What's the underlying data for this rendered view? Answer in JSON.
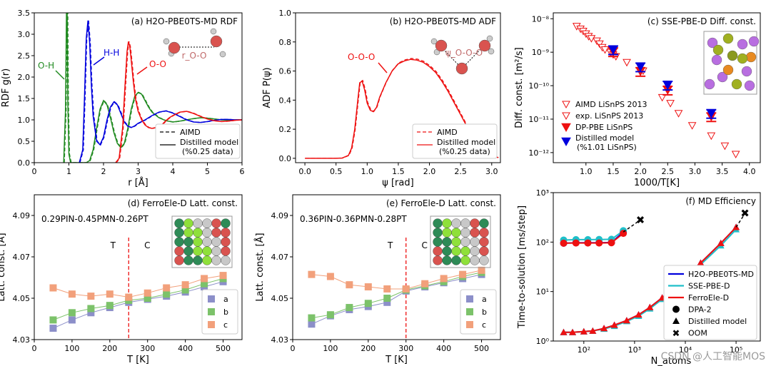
{
  "watermark": "CSDN @人工智能MOS",
  "chart_data": [
    {
      "type": "line",
      "title": "(a) H2O-PBE0TS-MD RDF",
      "xlabel": "r [Å]",
      "ylabel": "RDF g(r)",
      "xlim": [
        0,
        6
      ],
      "ylim": [
        0,
        3.5
      ],
      "xticks": [
        "0",
        "1",
        "2",
        "3",
        "4",
        "5",
        "6"
      ],
      "yticks": [
        "0.0",
        "0.5",
        "1.0",
        "1.5",
        "2.0",
        "2.5",
        "3.0",
        "3.5"
      ],
      "annotations": [
        "O-H",
        "H-H",
        "O-O",
        "r_O-O"
      ],
      "legend": [
        "AIMD",
        "Distilled model\n(%0.25 data)"
      ],
      "legend_position": "lower-right",
      "series": [
        {
          "name": "O-H",
          "color": "#228b22",
          "x": [
            0.85,
            0.9,
            0.93,
            0.95,
            0.97,
            1.0,
            1.05,
            1.1,
            1.2,
            1.3,
            1.4,
            1.5,
            1.6,
            1.7,
            1.8,
            1.9,
            2.0,
            2.1,
            2.2,
            2.3,
            2.4,
            2.5,
            2.6,
            2.7,
            2.8,
            2.9,
            3.0,
            3.1,
            3.2,
            3.3,
            3.4,
            3.6,
            3.8,
            4.0,
            4.2,
            4.4,
            4.6,
            4.8,
            5.0,
            5.2,
            5.4,
            5.6,
            5.8,
            6.0
          ],
          "y": [
            0.0,
            1.2,
            3.5,
            3.5,
            1.4,
            0.2,
            0.0,
            0.0,
            0.0,
            0.0,
            0.0,
            0.0,
            0.05,
            0.3,
            0.8,
            1.25,
            1.45,
            1.35,
            1.05,
            0.7,
            0.45,
            0.35,
            0.45,
            0.8,
            1.25,
            1.55,
            1.64,
            1.6,
            1.45,
            1.3,
            1.18,
            1.05,
            0.98,
            0.95,
            0.97,
            1.0,
            1.03,
            1.05,
            1.04,
            1.02,
            1.0,
            0.99,
            1.0,
            1.0
          ]
        },
        {
          "name": "H-H",
          "color": "#0000dd",
          "x": [
            1.3,
            1.4,
            1.45,
            1.5,
            1.55,
            1.6,
            1.65,
            1.7,
            1.8,
            1.9,
            2.0,
            2.1,
            2.2,
            2.3,
            2.4,
            2.5,
            2.6,
            2.7,
            2.8,
            2.9,
            3.0,
            3.2,
            3.4,
            3.6,
            3.8,
            4.0,
            4.2,
            4.4,
            4.6,
            4.8,
            5.0,
            5.2,
            5.4,
            5.6,
            5.8,
            6.0
          ],
          "y": [
            0.0,
            0.3,
            1.5,
            2.9,
            3.32,
            2.8,
            1.8,
            1.1,
            0.5,
            0.42,
            0.6,
            1.0,
            1.3,
            1.42,
            1.35,
            1.15,
            0.95,
            0.85,
            0.82,
            0.86,
            0.92,
            1.0,
            1.1,
            1.18,
            1.21,
            1.16,
            1.08,
            1.0,
            0.95,
            0.94,
            0.96,
            0.99,
            1.01,
            1.01,
            1.0,
            1.0
          ]
        },
        {
          "name": "O-O",
          "color": "#ee1111",
          "x": [
            2.35,
            2.45,
            2.55,
            2.62,
            2.68,
            2.72,
            2.76,
            2.8,
            2.86,
            2.92,
            3.0,
            3.1,
            3.2,
            3.3,
            3.4,
            3.5,
            3.6,
            3.7,
            3.8,
            3.9,
            4.0,
            4.2,
            4.4,
            4.6,
            4.8,
            5.0,
            5.2,
            5.4,
            5.6,
            5.8,
            6.0
          ],
          "y": [
            0.0,
            0.1,
            0.8,
            1.8,
            2.6,
            2.83,
            2.7,
            2.4,
            1.9,
            1.5,
            1.2,
            1.0,
            0.88,
            0.82,
            0.8,
            0.82,
            0.85,
            0.9,
            0.98,
            1.05,
            1.1,
            1.18,
            1.2,
            1.15,
            1.08,
            1.02,
            0.98,
            0.96,
            0.97,
            0.99,
            1.0
          ]
        }
      ]
    },
    {
      "type": "line",
      "title": "(b) H2O-PBE0TS-MD ADF",
      "xlabel": "ψ [rad]",
      "ylabel": "ADF P(ψ)",
      "xlim": [
        -0.15,
        3.14
      ],
      "ylim": [
        -0.03,
        1.0
      ],
      "xticks": [
        "0.0",
        "0.5",
        "1.0",
        "1.5",
        "2.0",
        "2.5",
        "3.0"
      ],
      "yticks": [
        "0.0",
        "0.2",
        "0.4",
        "0.6",
        "0.8",
        "1.0"
      ],
      "annotations": [
        "O-O-O",
        "ψ_O-O-O"
      ],
      "legend": [
        "AIMD",
        "Distilled model\n(%0.25 data)"
      ],
      "legend_position": "lower-right",
      "series": [
        {
          "name": "O-O-O",
          "color": "#ee1111",
          "x": [
            0.0,
            0.3,
            0.5,
            0.6,
            0.7,
            0.75,
            0.8,
            0.85,
            0.88,
            0.92,
            0.96,
            1.0,
            1.05,
            1.1,
            1.15,
            1.2,
            1.3,
            1.4,
            1.5,
            1.6,
            1.7,
            1.8,
            1.9,
            2.0,
            2.1,
            2.2,
            2.3,
            2.4,
            2.5,
            2.6,
            2.7,
            2.8,
            2.9,
            3.0,
            3.1
          ],
          "y": [
            0.0,
            0.0,
            0.0,
            0.002,
            0.02,
            0.07,
            0.2,
            0.4,
            0.52,
            0.53,
            0.47,
            0.38,
            0.33,
            0.32,
            0.35,
            0.42,
            0.52,
            0.6,
            0.65,
            0.67,
            0.68,
            0.675,
            0.66,
            0.63,
            0.59,
            0.53,
            0.46,
            0.38,
            0.3,
            0.22,
            0.15,
            0.09,
            0.05,
            0.02,
            0.005
          ]
        }
      ]
    },
    {
      "type": "scatter",
      "title": "(c) SSE-PBE-D Diff. const.",
      "xlabel": "1000/T[K]",
      "ylabel": "Diff. const. [m²/s]",
      "xlim": [
        0.4,
        4.2
      ],
      "log_y": true,
      "ylim": [
        5e-13,
        1.5e-08
      ],
      "xticks": [
        "1.0",
        "1.5",
        "2.0",
        "2.5",
        "3.0",
        "3.5",
        "4.0"
      ],
      "yticks": [
        "10⁻¹²",
        "10⁻¹¹",
        "10⁻¹⁰",
        "10⁻⁹",
        "10⁻⁸"
      ],
      "legend": [
        "AIMD LiSnPS 2013",
        "exp. LiSnPS 2013",
        "DP-PBE LiSnPS",
        "Distilled model\n(%1.01 LiSnPS)"
      ],
      "legend_position": "lower-left",
      "series": [
        {
          "name": "AIMD LiSnPS 2013",
          "marker": "open-triangle-down",
          "color": "#ee1111",
          "x": [
            0.83,
            0.9,
            0.95,
            1.0,
            1.05,
            1.1,
            1.2,
            1.25,
            1.3,
            1.35,
            1.45,
            1.5,
            1.55
          ],
          "y": [
            6e-09,
            5e-09,
            4.3e-09,
            3.6e-09,
            3e-09,
            2.6e-09,
            2.2e-09,
            1.8e-09,
            1.4e-09,
            1.2e-09,
            1e-09,
            8.5e-10,
            7.5e-10
          ]
        },
        {
          "name": "exp. LiSnPS 2013",
          "marker": "open-triangle-down",
          "color": "#ee1111",
          "x": [
            1.75,
            2.05,
            2.4,
            2.55,
            2.7,
            2.95,
            3.3,
            3.55,
            3.75
          ],
          "y": [
            5e-10,
            2.8e-10,
            4.5e-11,
            3e-11,
            1.5e-11,
            6.5e-12,
            3.2e-12,
            1.6e-12,
            9e-13
          ]
        },
        {
          "name": "DP-PBE LiSnPS",
          "marker": "filled-triangle-down",
          "color": "#ee1111",
          "x": [
            1.5,
            2.0,
            2.5,
            3.3
          ],
          "y": [
            1.05e-09,
            2.7e-10,
            7.5e-11,
            1.2e-11
          ]
        },
        {
          "name": "Distilled model\n(%1.01 LiSnPS)",
          "marker": "filled-triangle-down",
          "color": "#0000dd",
          "x": [
            1.5,
            2.0,
            2.5,
            3.3
          ],
          "y": [
            1.2e-09,
            3.7e-10,
            1.05e-10,
            1.5e-11
          ]
        }
      ]
    },
    {
      "type": "line",
      "title": "(d) FerroEle-D Latt. const.",
      "subtitle": "0.29PIN-0.45PMN-0.26PT",
      "xlabel": "T [K]",
      "ylabel": "Latt. const. [Å]",
      "xlim": [
        0,
        550
      ],
      "ylim": [
        4.03,
        4.1
      ],
      "xticks": [
        "0",
        "100",
        "200",
        "300",
        "400",
        "500"
      ],
      "yticks": [
        "4.03",
        "4.05",
        "4.07",
        "4.09"
      ],
      "transition_T": 250,
      "phase_labels": [
        "T",
        "C"
      ],
      "legend": [
        "a",
        "b",
        "c"
      ],
      "legend_position": "lower-right",
      "x": [
        50,
        100,
        150,
        200,
        250,
        300,
        350,
        400,
        450,
        500
      ],
      "series": [
        {
          "name": "a",
          "color": "#8c8fc9",
          "values": [
            4.0355,
            4.0395,
            4.043,
            4.0455,
            4.048,
            4.0495,
            4.051,
            4.053,
            4.0555,
            4.058
          ]
        },
        {
          "name": "b",
          "color": "#7cc26a",
          "values": [
            4.0395,
            4.043,
            4.045,
            4.0465,
            4.049,
            4.05,
            4.052,
            4.054,
            4.057,
            4.0595
          ]
        },
        {
          "name": "c",
          "color": "#f2a07b",
          "values": [
            4.055,
            4.052,
            4.051,
            4.052,
            4.0505,
            4.0525,
            4.055,
            4.0565,
            4.0595,
            4.061
          ]
        }
      ]
    },
    {
      "type": "line",
      "title": "(e) FerroEle-D Latt. const.",
      "subtitle": "0.36PIN-0.36PMN-0.28PT",
      "xlabel": "T [K]",
      "ylabel": "Latt. const. [Å]",
      "xlim": [
        0,
        550
      ],
      "ylim": [
        4.03,
        4.1
      ],
      "xticks": [
        "0",
        "100",
        "200",
        "300",
        "400",
        "500"
      ],
      "yticks": [
        "4.03",
        "4.05",
        "4.07",
        "4.09"
      ],
      "transition_T": 300,
      "phase_labels": [
        "T",
        "C"
      ],
      "legend": [
        "a",
        "b",
        "c"
      ],
      "legend_position": "lower-right",
      "x": [
        50,
        100,
        150,
        200,
        250,
        300,
        350,
        400,
        450,
        500
      ],
      "series": [
        {
          "name": "a",
          "color": "#8c8fc9",
          "values": [
            4.0375,
            4.0415,
            4.0445,
            4.046,
            4.048,
            4.0535,
            4.0555,
            4.0575,
            4.0595,
            4.0615
          ]
        },
        {
          "name": "b",
          "color": "#7cc26a",
          "values": [
            4.0405,
            4.042,
            4.0455,
            4.0475,
            4.05,
            4.054,
            4.056,
            4.058,
            4.0605,
            4.0625
          ]
        },
        {
          "name": "c",
          "color": "#f2a07b",
          "values": [
            4.0615,
            4.0605,
            4.0565,
            4.0555,
            4.0545,
            4.0545,
            4.057,
            4.0595,
            4.0615,
            4.0635
          ]
        }
      ]
    },
    {
      "type": "line",
      "title": "(f) MD Efficiency",
      "xlabel": "N_atoms",
      "ylabel": "Time-to-solution [ms/step]",
      "log_x": true,
      "log_y": true,
      "xlim": [
        25,
        300000
      ],
      "ylim": [
        1,
        1000
      ],
      "xticks": [
        "10²",
        "10³",
        "10⁴",
        "10⁵"
      ],
      "yticks": [
        "10⁰",
        "10¹",
        "10²",
        "10³"
      ],
      "legend": [
        "H2O-PBE0TS-MD",
        "SSE-PBE-D",
        "FerroEle-D",
        "DPA-2",
        "Distilled model",
        "OOM"
      ],
      "legend_position": "lower-right",
      "series": [
        {
          "name": "H2O-PBE0TS-MD",
          "color": "#0000dd",
          "dpa2_x": [
            40,
            70,
            120,
            200,
            350,
            600
          ],
          "dpa2_y": [
            95,
            97,
            97,
            97,
            98,
            160
          ],
          "oom_x": [
            1300
          ],
          "oom_y": [
            280
          ],
          "distilled_x": [
            40,
            60,
            100,
            150,
            250,
            400,
            700,
            1200,
            2000,
            3500,
            6000,
            10000,
            20000,
            50000,
            100000
          ],
          "distilled_y": [
            1.5,
            1.5,
            1.55,
            1.6,
            1.8,
            2.1,
            2.6,
            3.4,
            4.8,
            7.5,
            12,
            20,
            38,
            95,
            200
          ],
          "oom2_x": [
            150000
          ],
          "oom2_y": [
            380
          ]
        },
        {
          "name": "SSE-PBE-D",
          "color": "#1fbfc9",
          "dpa2_x": [
            40,
            70,
            120,
            200,
            350,
            600
          ],
          "dpa2_y": [
            110,
            112,
            112,
            113,
            114,
            170
          ],
          "distilled_x": [
            40,
            60,
            100,
            150,
            250,
            400,
            700,
            1200,
            2000,
            3500,
            6000,
            10000,
            20000,
            50000,
            100000
          ],
          "distilled_y": [
            1.5,
            1.5,
            1.55,
            1.6,
            1.75,
            2.0,
            2.5,
            3.2,
            4.5,
            7,
            11,
            18,
            35,
            85,
            180
          ]
        },
        {
          "name": "FerroEle-D",
          "color": "#ee1111",
          "dpa2_x": [
            40,
            70,
            120,
            200,
            350,
            600
          ],
          "dpa2_y": [
            95,
            96,
            96,
            96,
            97,
            150
          ],
          "distilled_x": [
            40,
            60,
            100,
            150,
            250,
            400,
            700,
            1200,
            2000,
            3500,
            6000,
            10000,
            20000,
            50000,
            100000
          ],
          "distilled_y": [
            1.5,
            1.5,
            1.55,
            1.6,
            1.8,
            2.1,
            2.6,
            3.4,
            4.8,
            7.5,
            12,
            20,
            38,
            95,
            200
          ]
        }
      ]
    }
  ]
}
